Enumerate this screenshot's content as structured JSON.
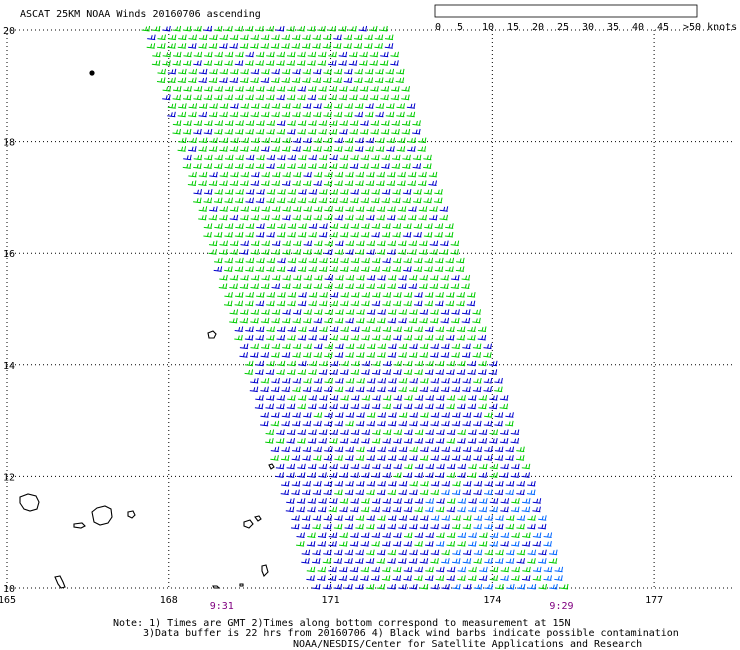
{
  "title": "ASCAT 25KM NOAA Winds 20160706 ascending",
  "legend": {
    "labels": [
      "0",
      "5",
      "10",
      "15",
      "20",
      "25",
      "30",
      "35",
      "40",
      "45",
      ">50 knots"
    ],
    "colors": [
      "#555555",
      "#9a9a9a",
      "#00c8ff",
      "#0066ff",
      "#00c000",
      "#80ff00",
      "#ffd000",
      "#ff8800",
      "#ff2020",
      "#cc0000",
      "#ff00ff",
      "#7700aa"
    ]
  },
  "axes": {
    "x_ticks": [
      {
        "value": 165,
        "label": "165"
      },
      {
        "value": 168,
        "label": "168"
      },
      {
        "value": 171,
        "label": "171"
      },
      {
        "value": 174,
        "label": "174"
      },
      {
        "value": 177,
        "label": "177"
      }
    ],
    "y_ticks": [
      {
        "value": 10,
        "label": "10"
      },
      {
        "value": 12,
        "label": "12"
      },
      {
        "value": 14,
        "label": "14"
      },
      {
        "value": 16,
        "label": "16"
      },
      {
        "value": 18,
        "label": "18"
      },
      {
        "value": 20,
        "label": "20"
      }
    ],
    "lon_range": [
      165,
      178.5
    ],
    "lat_range": [
      10,
      20
    ]
  },
  "times": [
    {
      "lon": 169.0,
      "label": "9:31"
    },
    {
      "lon": 175.3,
      "label": "9:29"
    }
  ],
  "notes": [
    "Note: 1) Times are GMT 2)Times along bottom correspond to measurement at 15N",
    "3)Data buffer is 22 hrs from 20160706 4) Black wind barbs indicate possible contamination",
    "NOAA/NESDIS/Center for Satellite Applications and Research"
  ],
  "swath": {
    "corners": [
      [
        167.4,
        20
      ],
      [
        172.0,
        20
      ],
      [
        175.3,
        10
      ],
      [
        170.5,
        10
      ]
    ]
  },
  "wind_colors": {
    "green": "#00cc00",
    "blue": "#0000cc",
    "ltblue": "#0066ff"
  }
}
